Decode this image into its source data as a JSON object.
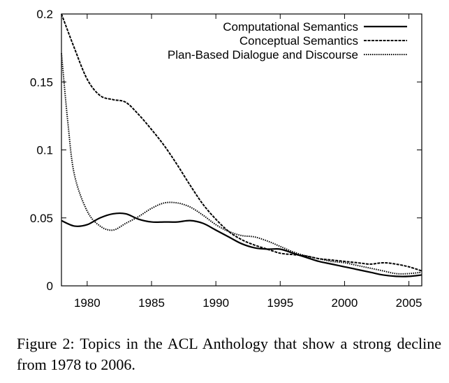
{
  "chart_data": {
    "type": "line",
    "title": "",
    "xlabel": "",
    "ylabel": "",
    "xlim": [
      1978,
      2006
    ],
    "ylim": [
      0,
      0.2
    ],
    "x_ticks": [
      1980,
      1985,
      1990,
      1995,
      2000,
      2005
    ],
    "y_ticks": [
      0,
      0.05,
      0.1,
      0.15,
      0.2
    ],
    "x_tick_labels": [
      "1980",
      "1985",
      "1990",
      "1995",
      "2000",
      "2005"
    ],
    "y_tick_labels": [
      "0",
      "0.05",
      "0.1",
      "0.15",
      "0.2"
    ],
    "grid": false,
    "legend_position": "top-right",
    "series": [
      {
        "name": "Computational Semantics",
        "style": "solid",
        "x": [
          1978,
          1979,
          1980,
          1981,
          1982,
          1983,
          1984,
          1985,
          1986,
          1987,
          1988,
          1989,
          1990,
          1991,
          1992,
          1993,
          1994,
          1995,
          1996,
          1997,
          1998,
          1999,
          2000,
          2001,
          2002,
          2003,
          2004,
          2005,
          2006
        ],
        "y": [
          0.048,
          0.044,
          0.045,
          0.05,
          0.053,
          0.053,
          0.049,
          0.047,
          0.047,
          0.047,
          0.048,
          0.046,
          0.041,
          0.036,
          0.031,
          0.028,
          0.027,
          0.027,
          0.024,
          0.021,
          0.018,
          0.016,
          0.014,
          0.012,
          0.01,
          0.008,
          0.007,
          0.007,
          0.008
        ]
      },
      {
        "name": "Conceptual Semantics",
        "style": "dashed",
        "x": [
          1978,
          1979,
          1980,
          1981,
          1982,
          1983,
          1984,
          1985,
          1986,
          1987,
          1988,
          1989,
          1990,
          1991,
          1992,
          1993,
          1994,
          1995,
          1996,
          1997,
          1998,
          1999,
          2000,
          2001,
          2002,
          2003,
          2004,
          2005,
          2006
        ],
        "y": [
          0.2,
          0.175,
          0.152,
          0.14,
          0.137,
          0.135,
          0.126,
          0.115,
          0.103,
          0.089,
          0.074,
          0.06,
          0.049,
          0.04,
          0.034,
          0.03,
          0.027,
          0.024,
          0.023,
          0.022,
          0.02,
          0.019,
          0.018,
          0.017,
          0.016,
          0.017,
          0.016,
          0.014,
          0.011
        ]
      },
      {
        "name": "Plan-Based Dialogue and Discourse",
        "style": "dotted",
        "x": [
          1978,
          1978.5,
          1979,
          1980,
          1981,
          1982,
          1983,
          1984,
          1985,
          1986,
          1987,
          1988,
          1989,
          1990,
          1991,
          1992,
          1993,
          1994,
          1995,
          1996,
          1997,
          1998,
          1999,
          2000,
          2001,
          2002,
          2003,
          2004,
          2005,
          2006
        ],
        "y": [
          0.171,
          0.12,
          0.082,
          0.055,
          0.044,
          0.041,
          0.046,
          0.051,
          0.057,
          0.061,
          0.061,
          0.058,
          0.052,
          0.045,
          0.04,
          0.037,
          0.036,
          0.033,
          0.029,
          0.025,
          0.022,
          0.02,
          0.018,
          0.017,
          0.015,
          0.013,
          0.011,
          0.009,
          0.009,
          0.01
        ]
      }
    ]
  },
  "caption": {
    "text": "Figure 2:  Topics in the ACL Anthology that show a strong decline from 1978 to 2006."
  }
}
